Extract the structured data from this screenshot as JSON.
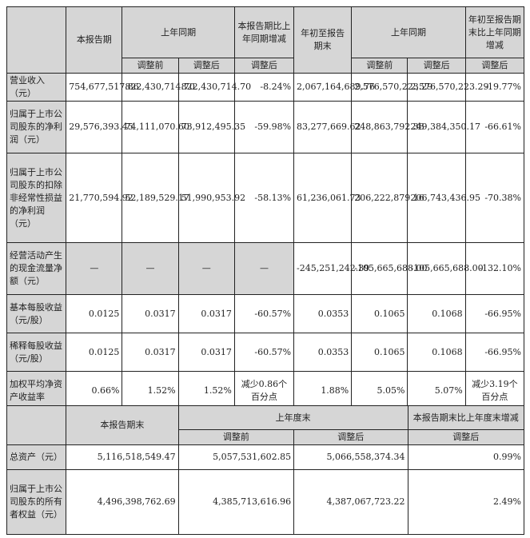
{
  "table1": {
    "header": {
      "c1": "本报告期",
      "c2": "上年同期",
      "c3": "本报告期比上年同期增减",
      "c4": "年初至报告期末",
      "c5": "上年同期",
      "c6": "年初至报告期末比上年同期增减",
      "sub": [
        "调整前",
        "调整后",
        "调整后",
        "调整前",
        "调整后",
        "调整后"
      ]
    },
    "rows": [
      {
        "label": "营业收入（元）",
        "v": [
          "754,677,517.86",
          "822,430,714.70",
          "822,430,714.70",
          "-8.24%",
          "2,067,164,689.76",
          "2,576,570,223.29",
          "2,576,570,223.29",
          "-19.77%"
        ]
      },
      {
        "label": "归属于上市公司股东的净利润（元）",
        "v": [
          "29,576,393.45",
          "74,111,070.60",
          "73,912,495.35",
          "-59.98%",
          "83,277,669.62",
          "248,863,792.38",
          "249,384,350.17",
          "-66.61%"
        ]
      },
      {
        "label": "归属于上市公司股东的扣除非经常性损益的净利润（元）",
        "v": [
          "21,770,594.92",
          "52,189,529.17",
          "51,990,953.92",
          "-58.13%",
          "61,236,061.73",
          "206,222,879.16",
          "206,743,436.95",
          "-70.38%"
        ]
      },
      {
        "label": "经营活动产生的现金流量净额（元）",
        "v": [
          "—",
          "—",
          "—",
          "—",
          "-245,251,242.39",
          "-105,665,688.00",
          "-105,665,688.00",
          "-132.10%"
        ]
      },
      {
        "label": "基本每股收益（元/股）",
        "v": [
          "0.0125",
          "0.0317",
          "0.0317",
          "-60.57%",
          "0.0353",
          "0.1065",
          "0.1068",
          "-66.95%"
        ]
      },
      {
        "label": "稀释每股收益（元/股）",
        "v": [
          "0.0125",
          "0.0317",
          "0.0317",
          "-60.57%",
          "0.0353",
          "0.1065",
          "0.1068",
          "-66.95%"
        ]
      },
      {
        "label": "加权平均净资产收益率",
        "v": [
          "0.66%",
          "1.52%",
          "1.52%",
          "减少0.86个百分点",
          "1.88%",
          "5.05%",
          "5.07%",
          "减少3.19个百分点"
        ]
      }
    ]
  },
  "table2": {
    "header": {
      "c1": "本报告期末",
      "c2": "上年度末",
      "c3": "本报告期末比上年度末增减",
      "sub": [
        "调整前",
        "调整后",
        "调整后"
      ]
    },
    "rows": [
      {
        "label": "总资产（元）",
        "v": [
          "5,116,518,549.47",
          "5,057,531,602.85",
          "5,066,558,374.34",
          "0.99%"
        ]
      },
      {
        "label": "归属于上市公司股东的所有者权益（元）",
        "v": [
          "4,496,398,762.69",
          "4,385,713,616.96",
          "4,387,067,723.22",
          "2.49%"
        ]
      }
    ]
  }
}
